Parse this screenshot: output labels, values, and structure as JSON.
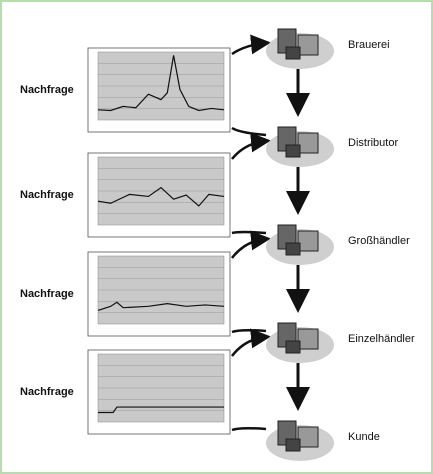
{
  "demand_label": [
    "Nachfrage",
    "Nachfrage",
    "Nachfrage",
    "Nachfrage"
  ],
  "nodes": [
    {
      "label": "Brauerei"
    },
    {
      "label": "Distributor"
    },
    {
      "label": "Großhändler"
    },
    {
      "label": "Einzelhändler"
    },
    {
      "label": "Kunde"
    }
  ]
}
